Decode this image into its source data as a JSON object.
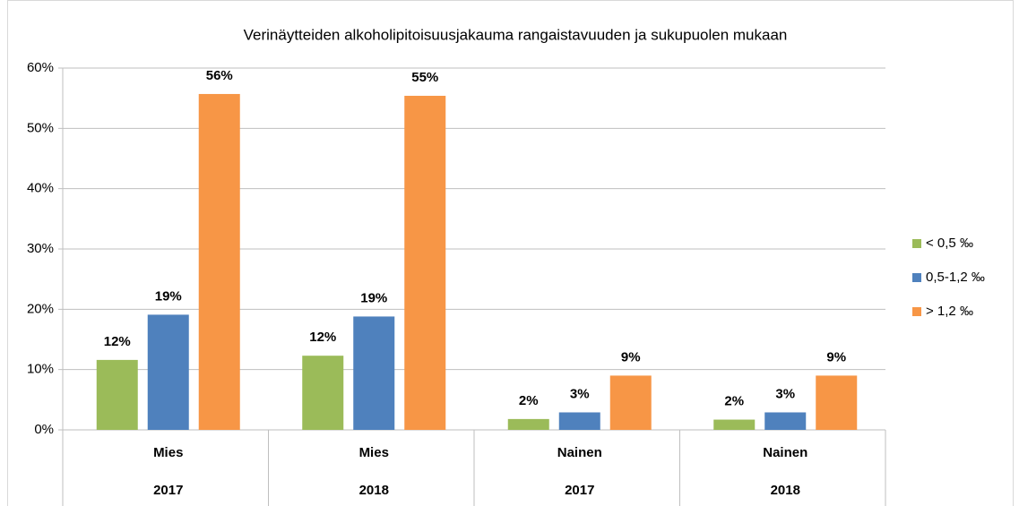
{
  "chart_data": {
    "type": "bar",
    "title": "Verinäytteiden  alkoholipitoisuusjakauma  rangaistavuuden  ja  sukupuolen  mukaan",
    "categories": [
      [
        "Mies",
        "2017"
      ],
      [
        "Mies",
        "2018"
      ],
      [
        "Nainen",
        "2017"
      ],
      [
        "Nainen",
        "2018"
      ]
    ],
    "series": [
      {
        "name": "< 0,5 ‰",
        "color": "#9bbb59",
        "values": [
          11.6,
          12.3,
          1.8,
          1.7
        ],
        "value_labels": [
          "12%",
          "12%",
          "2%",
          "2%"
        ]
      },
      {
        "name": "0,5-1,2 ‰",
        "color": "#4f81bd",
        "values": [
          19.1,
          18.8,
          2.9,
          2.9
        ],
        "value_labels": [
          "19%",
          "19%",
          "3%",
          "3%"
        ]
      },
      {
        "name": "> 1,2 ‰",
        "color": "#f79646",
        "values": [
          55.7,
          55.4,
          9.0,
          9.0
        ],
        "value_labels": [
          "56%",
          "55%",
          "9%",
          "9%"
        ]
      }
    ],
    "ylim": [
      0,
      60
    ],
    "yticks": [
      {
        "value": 0,
        "label": "0%"
      },
      {
        "value": 10,
        "label": "10%"
      },
      {
        "value": 20,
        "label": "20%"
      },
      {
        "value": 30,
        "label": "30%"
      },
      {
        "value": 40,
        "label": "40%"
      },
      {
        "value": 50,
        "label": "50%"
      },
      {
        "value": 60,
        "label": "60%"
      }
    ],
    "grid": true,
    "legend": "right"
  }
}
